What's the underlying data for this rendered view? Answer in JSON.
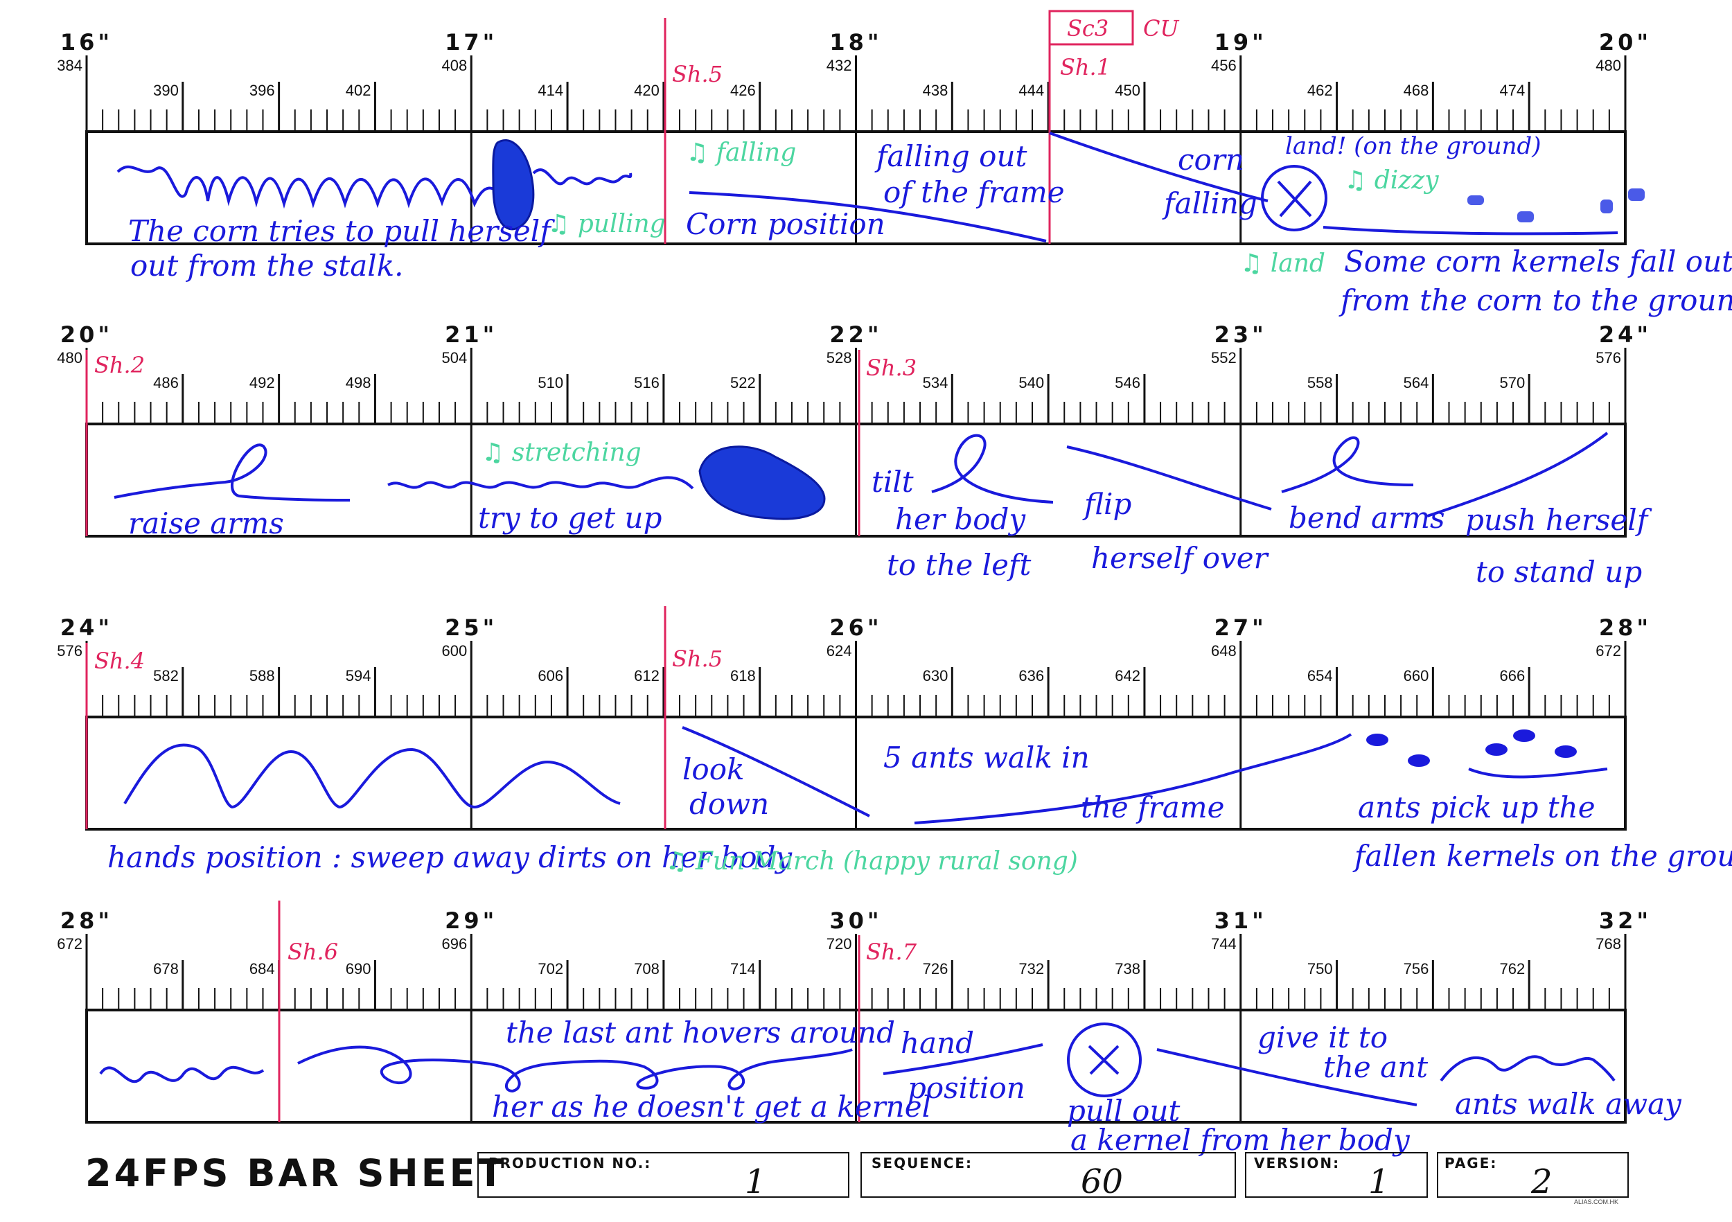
{
  "colors": {
    "ink": "#111111",
    "blue": "#1a1adc",
    "green": "#4cd6a0",
    "pink": "#e0245e"
  },
  "rows": [
    {
      "seconds": [
        "16\"",
        "17\"",
        "18\"",
        "19\"",
        "20\""
      ],
      "frames": [
        "384",
        "390",
        "396",
        "402",
        "408",
        "414",
        "420",
        "426",
        "432",
        "438",
        "444",
        "450",
        "456",
        "462",
        "468",
        "474",
        "480"
      ]
    },
    {
      "seconds": [
        "20\"",
        "21\"",
        "22\"",
        "23\"",
        "24\""
      ],
      "frames": [
        "480",
        "486",
        "492",
        "498",
        "504",
        "510",
        "516",
        "522",
        "528",
        "534",
        "540",
        "546",
        "552",
        "558",
        "564",
        "570",
        "576"
      ]
    },
    {
      "seconds": [
        "24\"",
        "25\"",
        "26\"",
        "27\"",
        "28\""
      ],
      "frames": [
        "576",
        "582",
        "588",
        "594",
        "600",
        "606",
        "612",
        "618",
        "624",
        "630",
        "636",
        "642",
        "648",
        "654",
        "660",
        "666",
        "672"
      ]
    },
    {
      "seconds": [
        "28\"",
        "29\"",
        "30\"",
        "31\"",
        "32\""
      ],
      "frames": [
        "672",
        "678",
        "684",
        "690",
        "696",
        "702",
        "708",
        "714",
        "720",
        "726",
        "732",
        "738",
        "744",
        "750",
        "756",
        "762",
        "768"
      ]
    }
  ],
  "notes": {
    "sc3": "Sc3",
    "cu": "CU",
    "shots": {
      "r1_sh5": "Sh.5",
      "r1_sh1": "Sh.1",
      "r2_sh2": "Sh.2",
      "r2_sh3": "Sh.3",
      "r3_sh4": "Sh.4",
      "r3_sh5": "Sh.5",
      "r4_sh6": "Sh.6",
      "r4_sh7": "Sh.7"
    },
    "row1": {
      "corn_tries": "The corn tries to pull herself",
      "out_from": "out from the stalk.",
      "pulling": "♫ pulling",
      "falling_music": "♫ falling",
      "corn_position": "Corn position",
      "falling_out": "falling out",
      "of_frame": "of the frame",
      "corn": "corn",
      "falling": "falling",
      "land": "land! (on the ground)",
      "dizzy": "♫ dizzy",
      "land_music": "♫ land",
      "kernels_1": "Some corn kernels fall out",
      "kernels_2": "from the corn to the ground"
    },
    "row2": {
      "raise_arms": "raise arms",
      "stretching": "♫ stretching",
      "try_get_up": "try to get up",
      "tilt": "tilt",
      "her_body": "her body",
      "to_left": "to the left",
      "flip": "flip",
      "herself_over": "herself over",
      "bend_arms": "bend arms",
      "push_herself": "push herself",
      "to_stand_up": "to stand up"
    },
    "row3": {
      "hands_position": "hands position : sweep away dirts on her body",
      "look": "look",
      "down": "down",
      "ants_walk_in": "5 ants walk in",
      "the_frame": "the frame",
      "fun_march": "♫ Fun March (happy rural song)",
      "ants_pick": "ants pick up the",
      "fallen_kernels": "fallen kernels on the ground"
    },
    "row4": {
      "last_ant": "the last ant hovers around",
      "her_as_he": "her as he doesn't get a kernel",
      "hand": "hand",
      "position": "position",
      "pull_out": "pull out",
      "a_kernel": "a kernel from her body",
      "give_it": "give it to",
      "the_ant": "the ant",
      "ants_walk_away": "ants walk away"
    }
  },
  "footer": {
    "title": "24FPS BAR SHEET",
    "fields": [
      {
        "label": "PRODUCTION NO.:",
        "value": "1"
      },
      {
        "label": "SEQUENCE:",
        "value": "60"
      },
      {
        "label": "VERSION:",
        "value": "1"
      },
      {
        "label": "PAGE:",
        "value": "2"
      }
    ],
    "credit": "ALIAS.COM.HK"
  }
}
